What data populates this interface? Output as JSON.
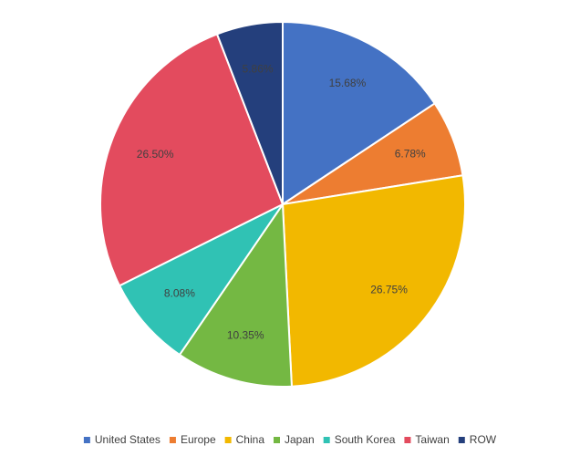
{
  "chart_data": {
    "type": "pie",
    "categories": [
      "United States",
      "Europe",
      "China",
      "Japan",
      "South Korea",
      "Taiwan",
      "ROW"
    ],
    "values": [
      15.68,
      6.78,
      26.75,
      10.35,
      8.08,
      26.5,
      5.86
    ],
    "value_labels": [
      "15.68%",
      "6.78%",
      "26.75%",
      "10.35%",
      "8.08%",
      "26.50%",
      "5.86%"
    ],
    "colors": [
      "#4472c4",
      "#ed7d31",
      "#f2b800",
      "#74b843",
      "#30c2b4",
      "#e34b5e",
      "#243f7c"
    ],
    "legend": "bottom"
  }
}
